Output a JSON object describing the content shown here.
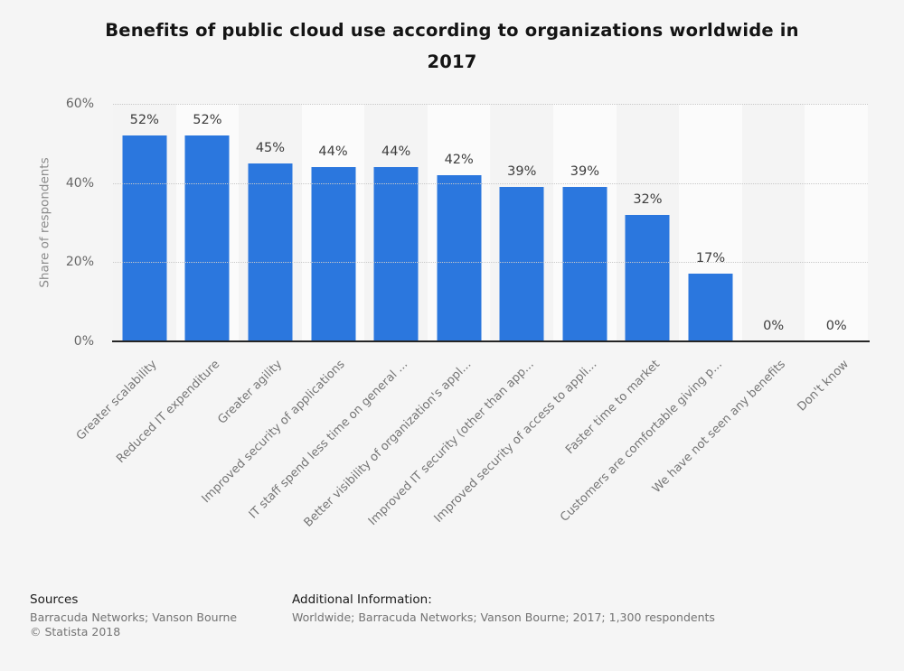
{
  "title_lines": [
    "Benefits of public cloud use according to organizations worldwide in",
    "2017"
  ],
  "chart_data": {
    "type": "bar",
    "title": "Benefits of public cloud use according to organizations worldwide in 2017",
    "xlabel": "",
    "ylabel": "Share of respondents",
    "ylim": [
      0,
      60
    ],
    "ytick_labels": [
      "0%",
      "20%",
      "40%",
      "60%"
    ],
    "ytick_values": [
      0,
      20,
      40,
      60
    ],
    "gridline_values": [
      20,
      40,
      60
    ],
    "grid": "horizontal dotted",
    "legend": "none",
    "bar_color": "#2b77de",
    "background_color": "#f5f5f5",
    "band_colors": [
      "#f4f4f4",
      "#fbfbfb"
    ],
    "categories": [
      "Greater scalability",
      "Reduced IT expenditure",
      "Greater agility",
      "Improved security of applications",
      "IT staff spend less time on general ...",
      "Better visibility of organization's appl...",
      "Improved IT security (other than app...",
      "Improved security of access to appli...",
      "Faster time to market",
      "Customers are comfortable giving p...",
      "We have not seen any benefits",
      "Don't know"
    ],
    "values": [
      52,
      52,
      45,
      44,
      44,
      42,
      39,
      39,
      32,
      17,
      0,
      0
    ],
    "value_labels": [
      "52%",
      "52%",
      "45%",
      "44%",
      "44%",
      "42%",
      "39%",
      "39%",
      "32%",
      "17%",
      "0%",
      "0%"
    ]
  },
  "footer": {
    "sources_heading": "Sources",
    "sources_line": "Barracuda Networks; Vanson Bourne",
    "copyright": "© Statista 2018",
    "additional_heading": "Additional Information:",
    "additional_line": "Worldwide; Barracuda Networks; Vanson Bourne; 2017; 1,300 respondents"
  }
}
